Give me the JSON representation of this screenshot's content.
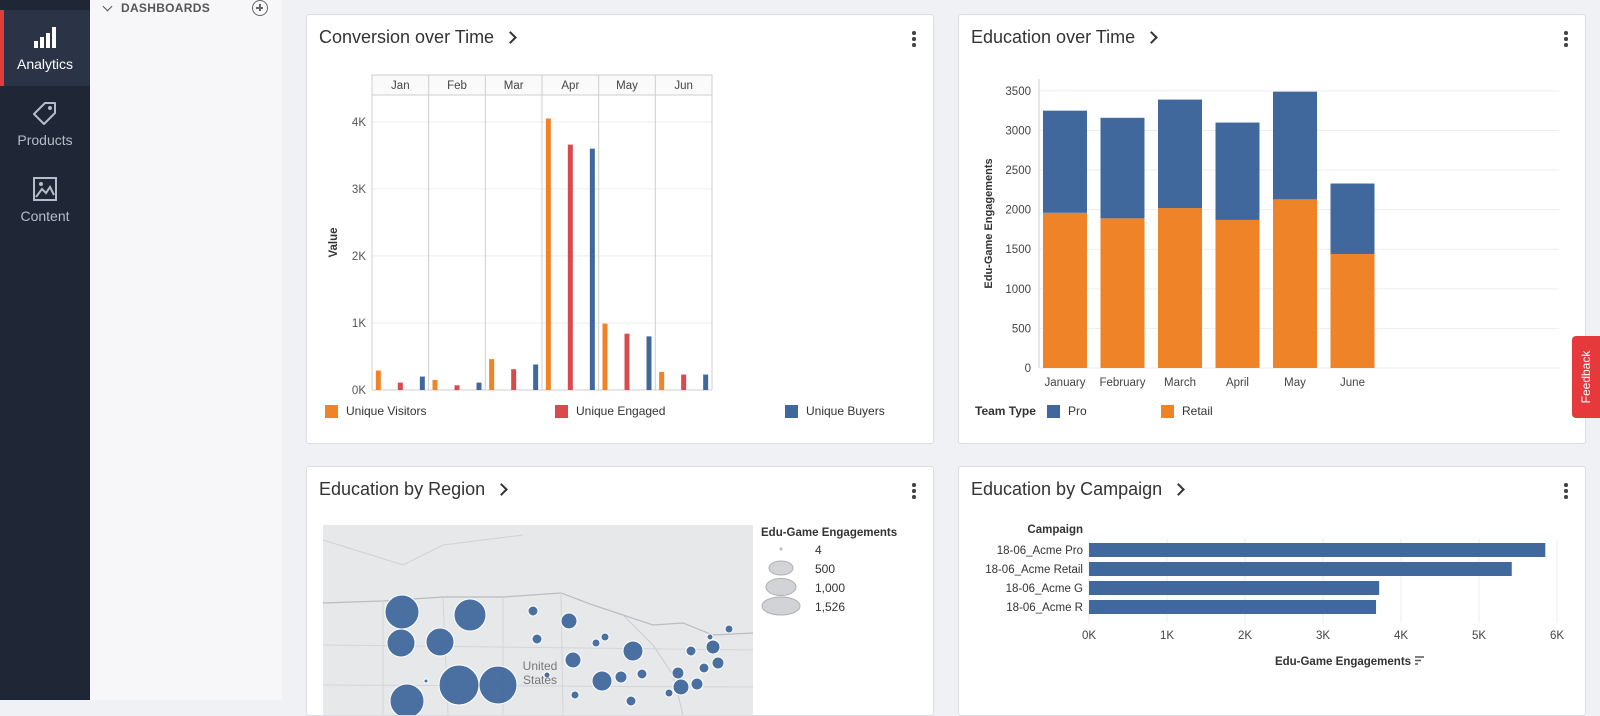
{
  "nav": {
    "items": [
      {
        "label": "Analytics",
        "icon": "bar-chart-icon",
        "active": true
      },
      {
        "label": "Products",
        "icon": "tag-icon",
        "active": false
      },
      {
        "label": "Content",
        "icon": "image-icon",
        "active": false
      }
    ]
  },
  "sidebar": {
    "section_label": "DASHBOARDS"
  },
  "feedback_label": "Feedback",
  "colors": {
    "orange": "#ee8328",
    "red": "#d94a4d",
    "blue": "#41689d",
    "nav_bg": "#1f2636",
    "accent": "#e23d3d"
  },
  "cards": {
    "conversion": {
      "title": "Conversion over Time",
      "legend": [
        "Unique Visitors",
        "Unique Engaged",
        "Unique Buyers"
      ]
    },
    "edu_time": {
      "title": "Education over Time",
      "legend_title": "Team Type",
      "legend": [
        "Pro",
        "Retail"
      ]
    },
    "region": {
      "title": "Education by Region",
      "map_label_line1": "United",
      "map_label_line2": "States",
      "size_legend_title": "Edu-Game Engagements",
      "size_legend": [
        "4",
        "500",
        "1,000",
        "1,526"
      ]
    },
    "campaign": {
      "title": "Education by Campaign"
    }
  },
  "chart_data": [
    {
      "id": "conversion",
      "type": "bar",
      "ylabel": "Value",
      "categories": [
        "Jan",
        "Feb",
        "Mar",
        "Apr",
        "May",
        "Jun"
      ],
      "y_ticks": [
        "0K",
        "1K",
        "2K",
        "3K",
        "4K"
      ],
      "ylim": [
        0,
        4400
      ],
      "series": [
        {
          "name": "Unique Visitors",
          "color": "#ee8328",
          "values": [
            290,
            150,
            460,
            4050,
            990,
            270
          ]
        },
        {
          "name": "Unique Engaged",
          "color": "#d94a4d",
          "values": [
            110,
            70,
            310,
            3660,
            840,
            230
          ]
        },
        {
          "name": "Unique Buyers",
          "color": "#41689d",
          "values": [
            200,
            110,
            380,
            3600,
            800,
            230
          ]
        }
      ],
      "legend_position": "bottom",
      "grid": true
    },
    {
      "id": "edu_time",
      "type": "bar",
      "stacked": true,
      "ylabel": "Edu-Game Engagements",
      "categories": [
        "January",
        "February",
        "March",
        "April",
        "May",
        "June"
      ],
      "y_ticks": [
        0,
        500,
        1000,
        1500,
        2000,
        2500,
        3000,
        3500
      ],
      "ylim": [
        0,
        3650
      ],
      "series": [
        {
          "name": "Retail",
          "color": "#ee8328",
          "values": [
            1960,
            1890,
            2020,
            1870,
            2130,
            1440
          ]
        },
        {
          "name": "Pro",
          "color": "#41689d",
          "values": [
            1290,
            1270,
            1370,
            1230,
            1360,
            890
          ]
        }
      ],
      "legend_title": "Team Type",
      "legend_position": "bottom",
      "grid": true
    },
    {
      "id": "campaign",
      "type": "bar",
      "orientation": "horizontal",
      "category_header": "Campaign",
      "xlabel": "Edu-Game Engagements",
      "categories": [
        "18-06_Acme Pro",
        "18-06_Acme Retail",
        "18-06_Acme G",
        "18-06_Acme R"
      ],
      "values": [
        5850,
        5420,
        3720,
        3680
      ],
      "x_ticks": [
        "0K",
        "1K",
        "2K",
        "3K",
        "4K",
        "5K",
        "6K"
      ],
      "xlim": [
        0,
        6000
      ],
      "color": "#41689d"
    },
    {
      "id": "region",
      "type": "bubble-map",
      "region": "United States",
      "size_legend": [
        4,
        500,
        1000,
        1526
      ]
    }
  ]
}
